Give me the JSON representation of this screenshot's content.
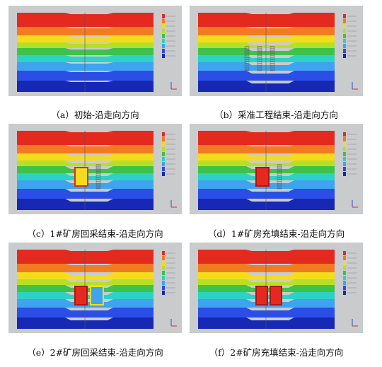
{
  "panels": [
    {
      "caption": "（a）初始-沿走向方向"
    },
    {
      "caption": "（b）采准工程结束-沿走向方向"
    },
    {
      "caption": "（c）1#矿房回采结束-沿走向方向"
    },
    {
      "caption": "（d）1#矿房充填结束-沿走向方向"
    },
    {
      "caption": "（e）2#矿房回采结束-沿走向方向"
    },
    {
      "caption": "（f）2#矿房充填结束-沿走向方向"
    }
  ]
}
